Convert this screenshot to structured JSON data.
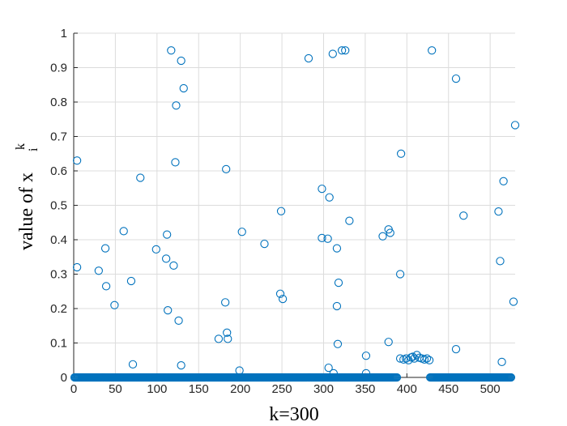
{
  "chart_data": {
    "type": "scatter",
    "xlabel": "k=300",
    "ylabel_prefix": "value of  x",
    "ylabel_superscript": "k",
    "ylabel_subscript": "i",
    "xlim": [
      0,
      530
    ],
    "ylim": [
      0,
      1
    ],
    "xticks": [
      0,
      50,
      100,
      150,
      200,
      250,
      300,
      350,
      400,
      450,
      500
    ],
    "yticks": [
      0,
      0.1,
      0.2,
      0.3,
      0.4,
      0.5,
      0.6,
      0.7,
      0.8,
      0.9,
      1
    ],
    "grid": true,
    "marker": "open-circle",
    "marker_color": "#0072bd",
    "baseline_x_range": [
      1,
      525
    ],
    "baseline_y": 0,
    "baseline_gap": [
      388,
      428
    ],
    "points": [
      [
        4,
        0.63
      ],
      [
        4,
        0.32
      ],
      [
        30,
        0.31
      ],
      [
        38,
        0.375
      ],
      [
        39,
        0.265
      ],
      [
        49,
        0.21
      ],
      [
        60,
        0.425
      ],
      [
        69,
        0.28
      ],
      [
        71,
        0.038
      ],
      [
        80,
        0.58
      ],
      [
        99,
        0.372
      ],
      [
        111,
        0.345
      ],
      [
        112,
        0.415
      ],
      [
        113,
        0.195
      ],
      [
        117,
        0.95
      ],
      [
        120,
        0.325
      ],
      [
        122,
        0.625
      ],
      [
        123,
        0.79
      ],
      [
        126,
        0.165
      ],
      [
        129,
        0.92
      ],
      [
        129,
        0.035
      ],
      [
        132,
        0.84
      ],
      [
        174,
        0.112
      ],
      [
        182,
        0.218
      ],
      [
        183,
        0.605
      ],
      [
        184,
        0.13
      ],
      [
        185,
        0.112
      ],
      [
        199,
        0.02
      ],
      [
        202,
        0.423
      ],
      [
        229,
        0.388
      ],
      [
        248,
        0.243
      ],
      [
        249,
        0.483
      ],
      [
        251,
        0.228
      ],
      [
        282,
        0.927
      ],
      [
        298,
        0.548
      ],
      [
        298,
        0.405
      ],
      [
        305,
        0.403
      ],
      [
        306,
        0.028
      ],
      [
        307,
        0.523
      ],
      [
        311,
        0.94
      ],
      [
        312,
        0.012
      ],
      [
        316,
        0.375
      ],
      [
        316,
        0.207
      ],
      [
        317,
        0.097
      ],
      [
        318,
        0.275
      ],
      [
        322,
        0.95
      ],
      [
        326,
        0.95
      ],
      [
        331,
        0.455
      ],
      [
        351,
        0.063
      ],
      [
        351,
        0.012
      ],
      [
        371,
        0.41
      ],
      [
        378,
        0.103
      ],
      [
        378,
        0.43
      ],
      [
        380,
        0.42
      ],
      [
        392,
        0.3
      ],
      [
        393,
        0.65
      ],
      [
        392,
        0.055
      ],
      [
        396,
        0.052
      ],
      [
        399,
        0.055
      ],
      [
        402,
        0.05
      ],
      [
        405,
        0.058
      ],
      [
        407,
        0.06
      ],
      [
        409,
        0.055
      ],
      [
        412,
        0.065
      ],
      [
        415,
        0.057
      ],
      [
        418,
        0.055
      ],
      [
        421,
        0.052
      ],
      [
        424,
        0.055
      ],
      [
        427,
        0.05
      ],
      [
        430,
        0.95
      ],
      [
        459,
        0.082
      ],
      [
        459,
        0.868
      ],
      [
        468,
        0.47
      ],
      [
        510,
        0.482
      ],
      [
        512,
        0.338
      ],
      [
        514,
        0.045
      ],
      [
        516,
        0.57
      ],
      [
        528,
        0.22
      ],
      [
        530,
        0.733
      ]
    ]
  }
}
